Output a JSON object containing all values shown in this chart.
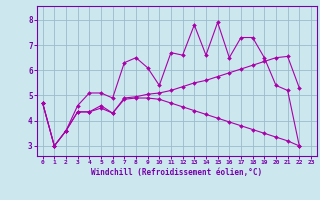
{
  "xlabel": "Windchill (Refroidissement éolien,°C)",
  "bg_color": "#cce8ee",
  "line_color": "#aa00aa",
  "grid_color": "#99bbcc",
  "axis_color": "#7700aa",
  "spine_color": "#7700aa",
  "xlim": [
    -0.5,
    23.5
  ],
  "ylim": [
    2.6,
    8.55
  ],
  "xticks": [
    0,
    1,
    2,
    3,
    4,
    5,
    6,
    7,
    8,
    9,
    10,
    11,
    12,
    13,
    14,
    15,
    16,
    17,
    18,
    19,
    20,
    21,
    22,
    23
  ],
  "yticks": [
    3,
    4,
    5,
    6,
    7,
    8
  ],
  "line1_x": [
    0,
    1,
    2,
    3,
    4,
    5,
    6,
    7,
    8,
    9,
    10,
    11,
    12,
    13,
    14,
    15,
    16,
    17,
    18,
    19,
    20,
    21,
    22
  ],
  "line1_y": [
    4.7,
    3.0,
    3.6,
    4.6,
    5.1,
    5.1,
    4.9,
    6.3,
    6.5,
    6.1,
    5.4,
    6.7,
    6.6,
    7.8,
    6.6,
    7.9,
    6.5,
    7.3,
    7.3,
    6.5,
    5.4,
    5.2,
    3.0
  ],
  "line2_x": [
    0,
    1,
    2,
    3,
    4,
    5,
    6,
    7,
    8,
    9,
    10,
    11,
    12,
    13,
    14,
    15,
    16,
    17,
    18,
    19,
    20,
    21,
    22
  ],
  "line2_y": [
    4.7,
    3.0,
    3.6,
    4.35,
    4.35,
    4.6,
    4.3,
    4.9,
    4.95,
    5.05,
    5.1,
    5.2,
    5.35,
    5.5,
    5.6,
    5.75,
    5.9,
    6.05,
    6.2,
    6.35,
    6.5,
    6.55,
    5.3
  ],
  "line3_x": [
    0,
    1,
    2,
    3,
    4,
    5,
    6,
    7,
    8,
    9,
    10,
    11,
    12,
    13,
    14,
    15,
    16,
    17,
    18,
    19,
    20,
    21,
    22
  ],
  "line3_y": [
    4.7,
    3.0,
    3.6,
    4.35,
    4.35,
    4.5,
    4.3,
    4.85,
    4.9,
    4.9,
    4.85,
    4.7,
    4.55,
    4.4,
    4.25,
    4.1,
    3.95,
    3.8,
    3.65,
    3.5,
    3.35,
    3.2,
    3.0
  ]
}
